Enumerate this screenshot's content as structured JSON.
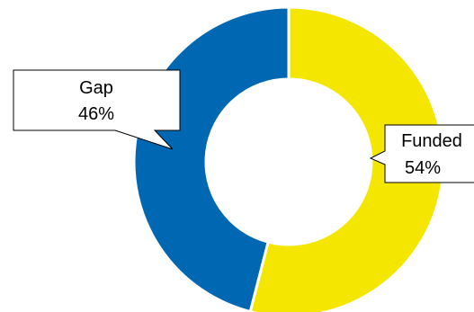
{
  "chart_data": {
    "type": "pie",
    "variant": "donut",
    "categories": [
      "Funded",
      "Gap"
    ],
    "values": [
      54,
      46
    ],
    "labels": [
      {
        "category": "Funded",
        "name": "Funded",
        "pct": "54%"
      },
      {
        "category": "Gap",
        "name": "Gap",
        "pct": "46%"
      }
    ],
    "colors": {
      "Funded": "#f5e600",
      "Gap": "#0068b3"
    },
    "start": "top",
    "direction": "clockwise"
  }
}
